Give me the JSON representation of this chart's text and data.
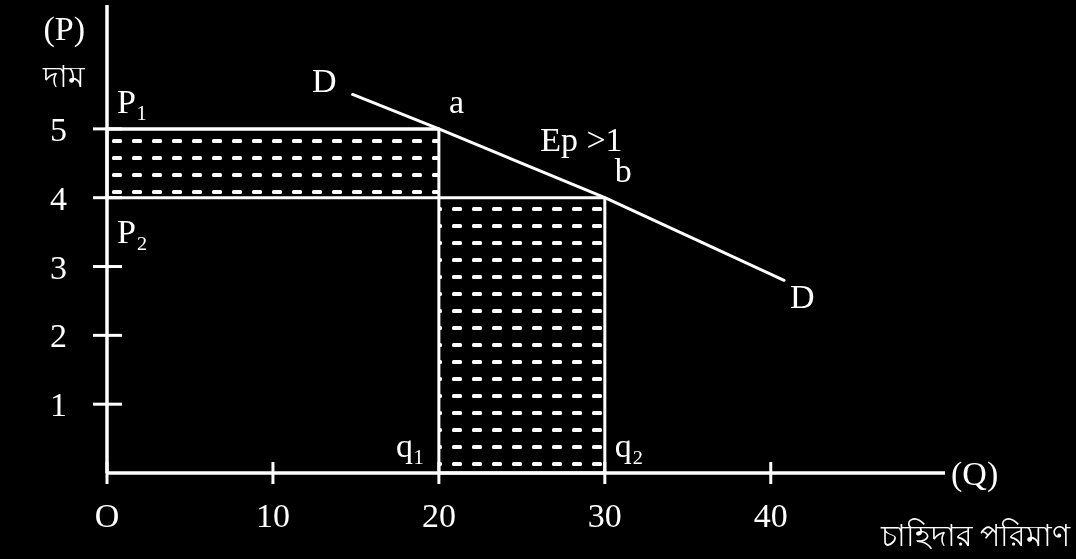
{
  "chart_data": {
    "type": "line",
    "xlabel": "(Q)\nচাহিদার পরিমাণ",
    "ylabel": "(P)\nদাম",
    "xlim": [
      0,
      50.5
    ],
    "ylim": [
      0,
      6.8
    ],
    "xticks": [
      {
        "value": 0,
        "label": "O"
      },
      10,
      20,
      30,
      40
    ],
    "yticks": [
      1,
      2,
      3,
      4,
      5
    ],
    "series": [
      {
        "type": "line",
        "x": [
          0,
          20
        ],
        "values": [
          5,
          5
        ],
        "lower": [
          4,
          4
        ],
        "upper": [
          5,
          5
        ],
        "color": "#ffffff"
      },
      {
        "type": "area",
        "x": [
          20,
          30
        ],
        "values": [
          4,
          4
        ],
        "color": "#ffffff"
      },
      {
        "name": "D",
        "x": [
          14.8,
          20,
          30,
          40.8
        ],
        "values": [
          5.5,
          5,
          4,
          2.8
        ],
        "color": "#ffffff"
      }
    ],
    "annotations": [
      {
        "text": "P₁",
        "x": 0,
        "y": 5
      },
      {
        "text": "P₂",
        "x": 0,
        "y": 4
      },
      {
        "text": "a",
        "x": 20,
        "y": 5
      },
      {
        "text": "b",
        "x": 30,
        "y": 4
      },
      {
        "text": "Ep >1",
        "x": 25.5,
        "y": 4.45
      },
      {
        "text": "q₁",
        "x": 20,
        "y": 0
      },
      {
        "text": "q₂",
        "x": 30,
        "y": 0
      }
    ]
  }
}
